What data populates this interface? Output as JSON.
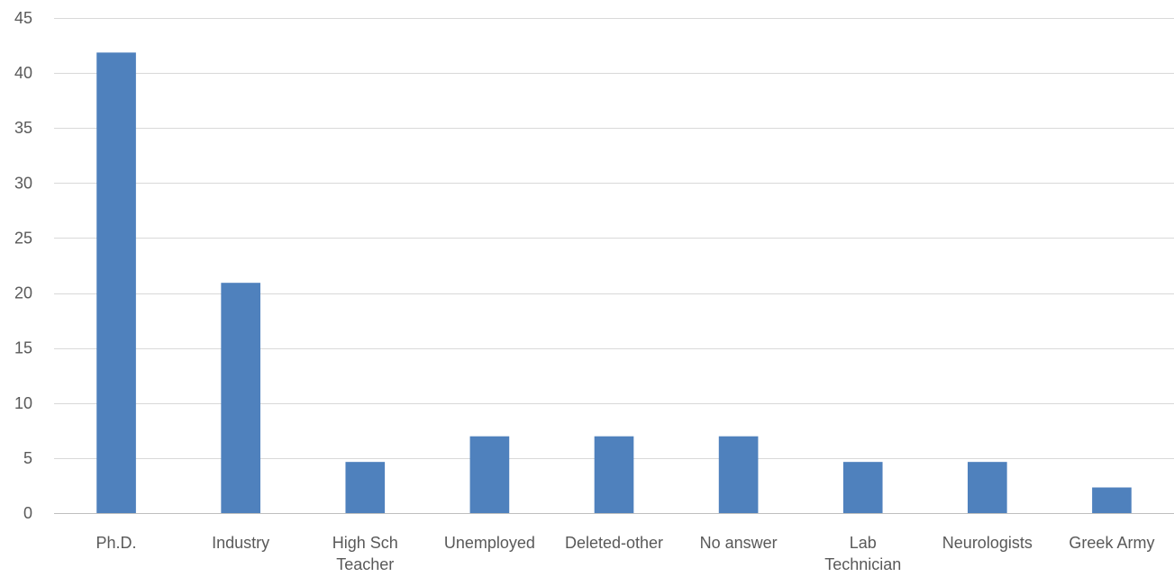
{
  "chart_data": {
    "type": "bar",
    "title": "",
    "xlabel": "",
    "ylabel": "",
    "categories": [
      [
        "Ph.D."
      ],
      [
        "Industry"
      ],
      [
        "High Sch",
        "Teacher"
      ],
      [
        "Unemployed"
      ],
      [
        "Deleted-other"
      ],
      [
        "No answer"
      ],
      [
        "Lab",
        "Technician"
      ],
      [
        "Neurologists"
      ],
      [
        "Greek Army"
      ]
    ],
    "values": [
      41.86,
      20.93,
      4.65,
      6.98,
      6.98,
      6.98,
      4.65,
      4.65,
      2.33
    ],
    "ylim": [
      0,
      45
    ],
    "yticks": [
      0,
      5,
      10,
      15,
      20,
      25,
      30,
      35,
      40,
      45
    ],
    "grid": true,
    "legend": "none",
    "bar_color": "#4f81bd"
  }
}
